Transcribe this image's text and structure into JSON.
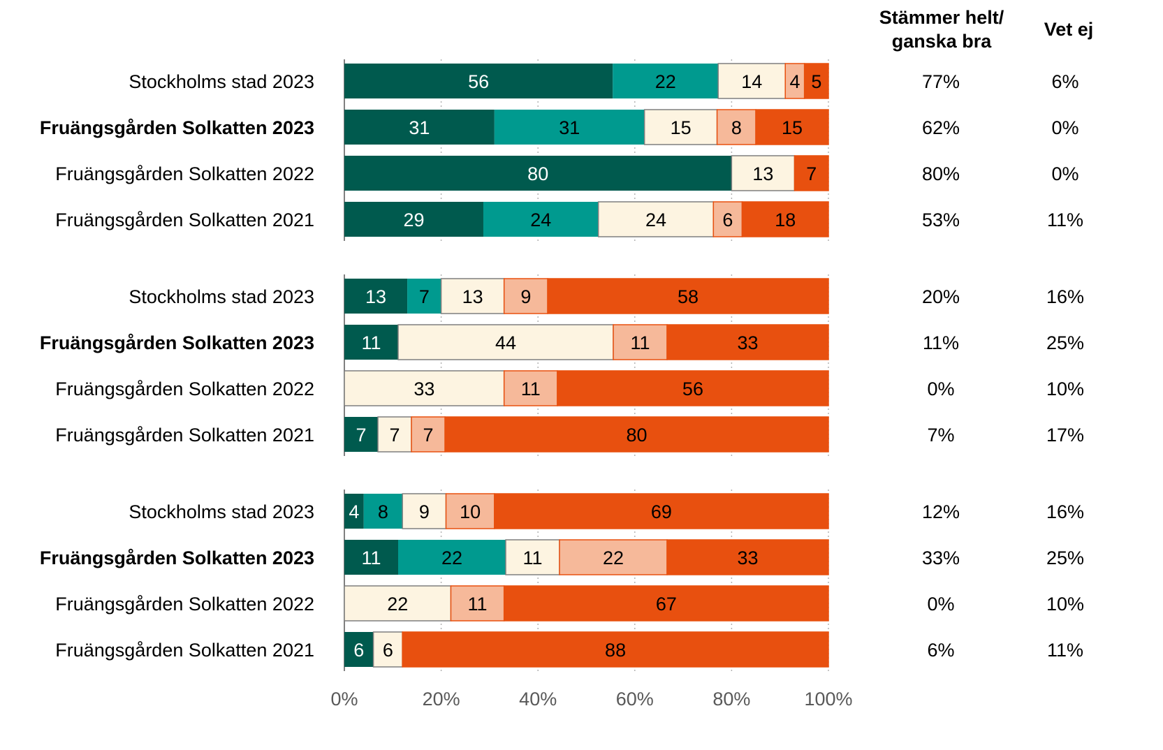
{
  "chart_data": {
    "type": "bar",
    "orientation": "horizontal",
    "stacked": true,
    "normalized": true,
    "xlim": [
      0,
      100
    ],
    "xticks": [
      "0%",
      "20%",
      "40%",
      "60%",
      "80%",
      "100%"
    ],
    "grid": "vertical-dotted",
    "segment_colors": [
      "#005a4e",
      "#009a8f",
      "#fdf4e1",
      "#f6b99a",
      "#e8500f"
    ],
    "column_headers": {
      "agree_line1": "Stämmer helt/",
      "agree_line2": "ganska bra",
      "dont_know": "Vet ej"
    },
    "groups": [
      {
        "rows": [
          {
            "label": "Stockholms stad 2023",
            "bold": false,
            "values": [
              56,
              22,
              14,
              4,
              5
            ],
            "agree": "77%",
            "dont_know": "6%"
          },
          {
            "label": "Fruängsgården Solkatten 2023",
            "bold": true,
            "values": [
              31,
              31,
              15,
              8,
              15
            ],
            "agree": "62%",
            "dont_know": "0%"
          },
          {
            "label": "Fruängsgården Solkatten 2022",
            "bold": false,
            "values": [
              80,
              0,
              13,
              0,
              7
            ],
            "agree": "80%",
            "dont_know": "0%"
          },
          {
            "label": "Fruängsgården Solkatten 2021",
            "bold": false,
            "values": [
              29,
              24,
              24,
              6,
              18
            ],
            "agree": "53%",
            "dont_know": "11%"
          }
        ]
      },
      {
        "rows": [
          {
            "label": "Stockholms stad 2023",
            "bold": false,
            "values": [
              13,
              7,
              13,
              9,
              58
            ],
            "agree": "20%",
            "dont_know": "16%"
          },
          {
            "label": "Fruängsgården Solkatten 2023",
            "bold": true,
            "values": [
              11,
              0,
              44,
              11,
              33
            ],
            "agree": "11%",
            "dont_know": "25%"
          },
          {
            "label": "Fruängsgården Solkatten 2022",
            "bold": false,
            "values": [
              0,
              0,
              33,
              11,
              56
            ],
            "agree": "0%",
            "dont_know": "10%"
          },
          {
            "label": "Fruängsgården Solkatten 2021",
            "bold": false,
            "values": [
              7,
              0,
              7,
              7,
              80
            ],
            "agree": "7%",
            "dont_know": "17%"
          }
        ]
      },
      {
        "rows": [
          {
            "label": "Stockholms stad 2023",
            "bold": false,
            "values": [
              4,
              8,
              9,
              10,
              69
            ],
            "agree": "12%",
            "dont_know": "16%"
          },
          {
            "label": "Fruängsgården Solkatten 2023",
            "bold": true,
            "values": [
              11,
              22,
              11,
              22,
              33
            ],
            "agree": "33%",
            "dont_know": "25%"
          },
          {
            "label": "Fruängsgården Solkatten 2022",
            "bold": false,
            "values": [
              0,
              0,
              22,
              11,
              67
            ],
            "agree": "0%",
            "dont_know": "10%"
          },
          {
            "label": "Fruängsgården Solkatten 2021",
            "bold": false,
            "values": [
              6,
              0,
              6,
              0,
              88
            ],
            "agree": "6%",
            "dont_know": "11%"
          }
        ]
      }
    ]
  }
}
